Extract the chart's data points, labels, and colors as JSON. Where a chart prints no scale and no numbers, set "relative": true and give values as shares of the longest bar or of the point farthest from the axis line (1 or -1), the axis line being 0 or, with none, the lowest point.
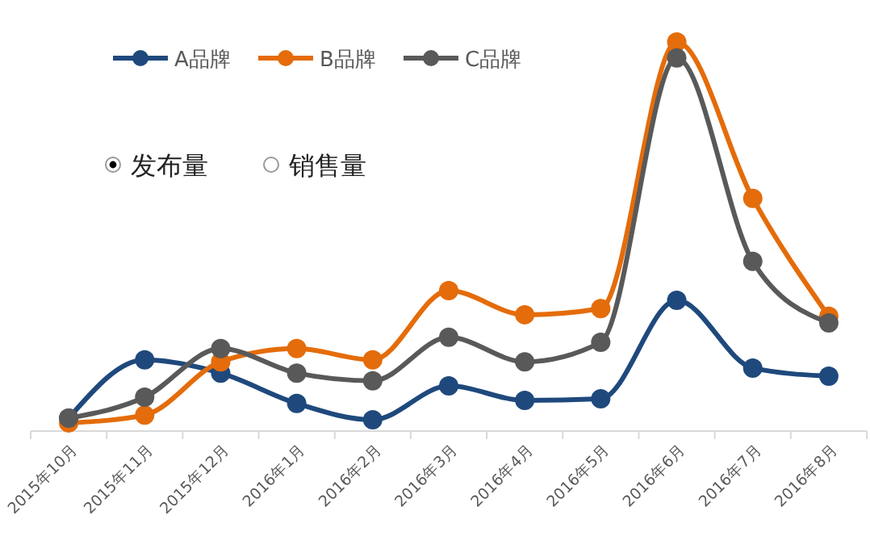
{
  "chart_data": {
    "type": "line",
    "relative": true,
    "categories": [
      "2015年10月",
      "2015年11月",
      "2015年12月",
      "2016年1月",
      "2016年2月",
      "2016年3月",
      "2016年4月",
      "2016年5月",
      "2016年6月",
      "2016年7月",
      "2016年8月"
    ],
    "series": [
      {
        "name": "A品牌",
        "color": "#1f497d",
        "values": [
          0.033,
          0.183,
          0.149,
          0.071,
          0.029,
          0.116,
          0.079,
          0.083,
          0.336,
          0.162,
          0.141
        ]
      },
      {
        "name": "B品牌",
        "color": "#e46c0a",
        "values": [
          0.021,
          0.041,
          0.178,
          0.212,
          0.183,
          0.361,
          0.299,
          0.315,
          1,
          0.598,
          0.295
        ]
      },
      {
        "name": "C品牌",
        "color": "#595959",
        "values": [
          0.033,
          0.087,
          0.212,
          0.149,
          0.129,
          0.241,
          0.178,
          0.228,
          0.959,
          0.436,
          0.278
        ]
      }
    ],
    "annotations": [
      "发布量",
      "销售量"
    ],
    "legend": "top left",
    "marker": "circle",
    "line_style": "solid"
  }
}
